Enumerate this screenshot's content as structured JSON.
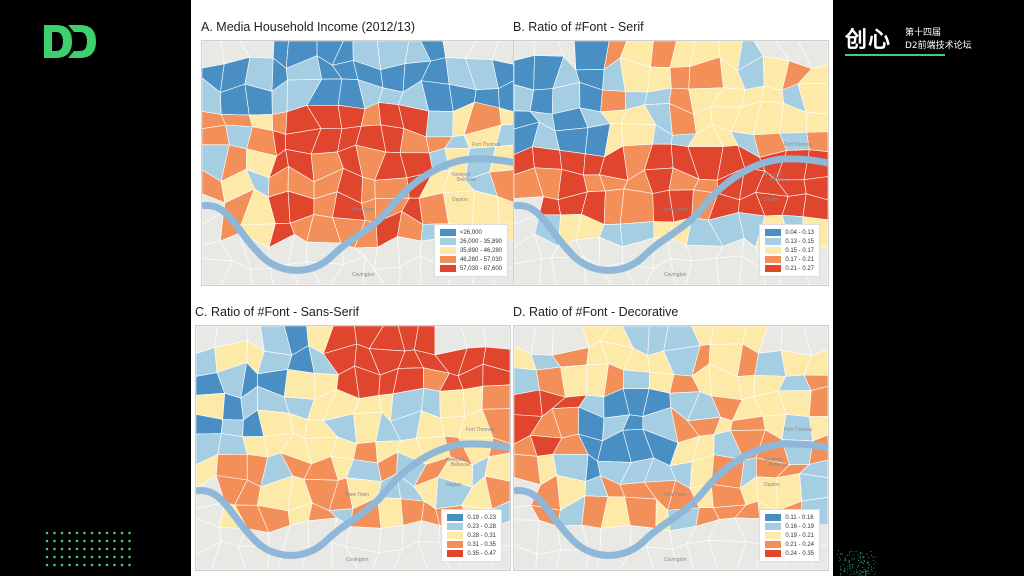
{
  "brand": {
    "logo_icon": "d2-logo-icon",
    "title_big": "创心",
    "title_line1": "第十四届",
    "title_line2": "D2前端技术论坛",
    "accent": "#3ecf6e"
  },
  "panels": [
    {
      "title": "A. Media Household Income (2012/13)",
      "legend": [
        {
          "label": "<26,000",
          "color": "#4a8fc4"
        },
        {
          "label": "26,000 - 35,890",
          "color": "#a6cee3"
        },
        {
          "label": "35,890 - 46,280",
          "color": "#fde9a8"
        },
        {
          "label": "46,280 - 57,030",
          "color": "#f3905a"
        },
        {
          "label": "57,030 - 87,600",
          "color": "#e0452e"
        }
      ]
    },
    {
      "title": "B. Ratio of #Font - Serif",
      "legend": [
        {
          "label": "0.04 - 0.13",
          "color": "#4a8fc4"
        },
        {
          "label": "0.13 - 0.15",
          "color": "#a6cee3"
        },
        {
          "label": "0.15 - 0.17",
          "color": "#fde9a8"
        },
        {
          "label": "0.17 - 0.21",
          "color": "#f3905a"
        },
        {
          "label": "0.21 - 0.27",
          "color": "#e0452e"
        }
      ]
    },
    {
      "title": "C. Ratio of #Font - Sans-Serif",
      "legend": [
        {
          "label": "0.19 - 0.23",
          "color": "#4a8fc4"
        },
        {
          "label": "0.23 - 0.28",
          "color": "#a6cee3"
        },
        {
          "label": "0.28 - 0.31",
          "color": "#fde9a8"
        },
        {
          "label": "0.31 - 0.35",
          "color": "#f3905a"
        },
        {
          "label": "0.35 - 0.47",
          "color": "#e0452e"
        }
      ]
    },
    {
      "title": "D. Ratio of #Font - Decorative",
      "legend": [
        {
          "label": "0.11 - 0.16",
          "color": "#4a8fc4"
        },
        {
          "label": "0.16 - 0.19",
          "color": "#a6cee3"
        },
        {
          "label": "0.19 - 0.21",
          "color": "#fde9a8"
        },
        {
          "label": "0.21 - 0.24",
          "color": "#f3905a"
        },
        {
          "label": "0.24 - 0.35",
          "color": "#e0452e"
        }
      ]
    }
  ],
  "map_labels": [
    "New Town",
    "Dayton",
    "Newport",
    "Bellevue",
    "Covington",
    "Fort Thomas"
  ],
  "river_color": "#8fb8d8"
}
